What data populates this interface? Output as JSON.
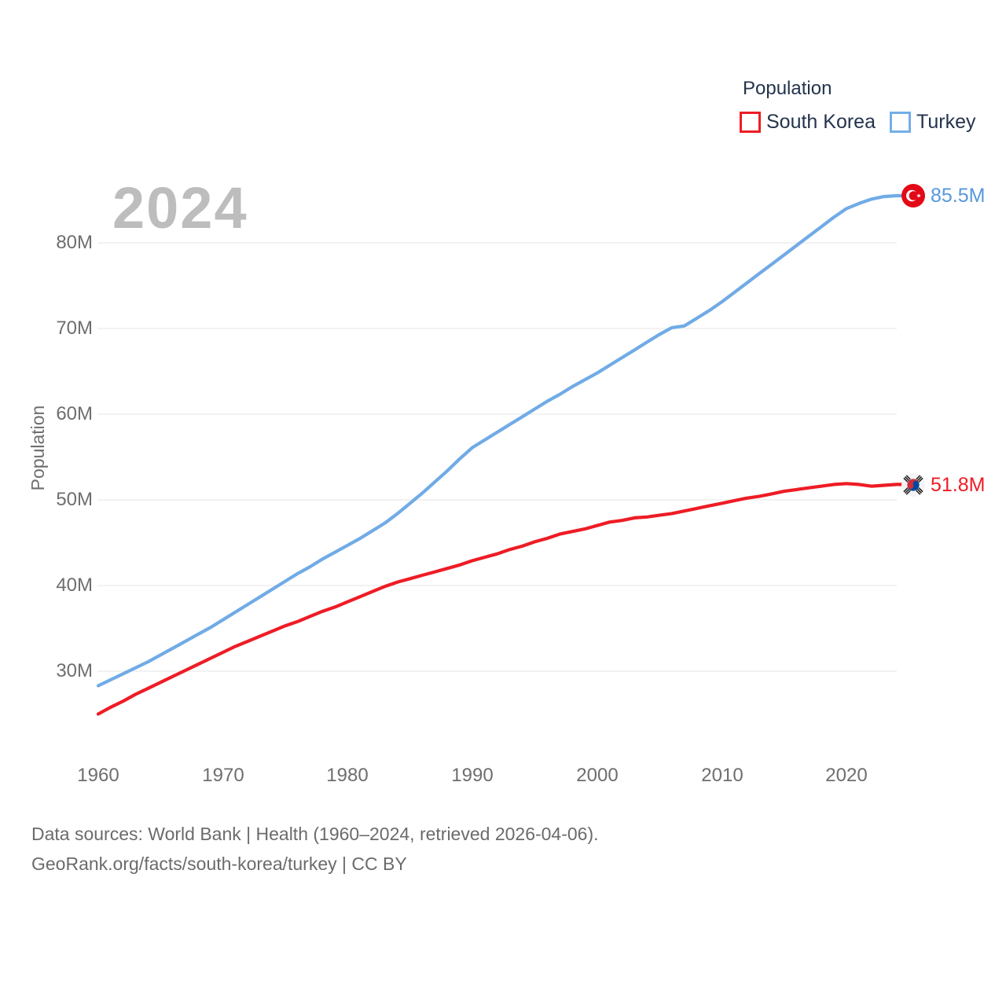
{
  "watermark": "2024",
  "legend": {
    "title": "Population",
    "series": [
      {
        "label": "South Korea",
        "color": "#ee1c25"
      },
      {
        "label": "Turkey",
        "color": "#74aee8"
      }
    ]
  },
  "y_axis": {
    "title": "Population",
    "tick_labels": [
      "80M",
      "70M",
      "60M",
      "50M",
      "40M",
      "30M"
    ]
  },
  "x_axis": {
    "tick_labels": [
      "1960",
      "1970",
      "1980",
      "1990",
      "2000",
      "2010",
      "2020"
    ]
  },
  "end_labels": {
    "turkey": {
      "text": "85.5M",
      "flag": "turkey-flag-icon"
    },
    "south_korea": {
      "text": "51.8M",
      "flag": "south-korea-flag-icon"
    }
  },
  "footer": {
    "line1": "Data sources: World Bank | Health (1960–2024, retrieved 2026-04-06).",
    "line2": "GeoRank.org/facts/south-korea/turkey | CC BY"
  },
  "chart_data": {
    "type": "line",
    "title": "Population of South Korea vs Turkey, 1960–2024",
    "xlabel": "",
    "ylabel": "Population",
    "ylim": [
      24,
      88
    ],
    "xlim": [
      1960,
      2024
    ],
    "grid": "horizontal",
    "legend_position": "top-right",
    "gridline_color": "#e9e9e9",
    "y_ticks": [
      30,
      40,
      50,
      60,
      70,
      80
    ],
    "y_tick_unit": "M",
    "x": [
      1960,
      1961,
      1962,
      1963,
      1964,
      1965,
      1966,
      1967,
      1968,
      1969,
      1970,
      1971,
      1972,
      1973,
      1974,
      1975,
      1976,
      1977,
      1978,
      1979,
      1980,
      1981,
      1982,
      1983,
      1984,
      1985,
      1986,
      1987,
      1988,
      1989,
      1990,
      1991,
      1992,
      1993,
      1994,
      1995,
      1996,
      1997,
      1998,
      1999,
      2000,
      2001,
      2002,
      2003,
      2004,
      2005,
      2006,
      2007,
      2008,
      2009,
      2010,
      2011,
      2012,
      2013,
      2014,
      2015,
      2016,
      2017,
      2018,
      2019,
      2020,
      2021,
      2022,
      2023,
      2024
    ],
    "series": [
      {
        "name": "South Korea",
        "color": "#ee1c25",
        "final_label": "51.8M",
        "values": [
          25.0,
          25.8,
          26.5,
          27.3,
          28.0,
          28.7,
          29.4,
          30.1,
          30.8,
          31.5,
          32.2,
          32.9,
          33.5,
          34.1,
          34.7,
          35.3,
          35.8,
          36.4,
          37.0,
          37.5,
          38.1,
          38.7,
          39.3,
          39.9,
          40.4,
          40.8,
          41.2,
          41.6,
          42.0,
          42.4,
          42.9,
          43.3,
          43.7,
          44.2,
          44.6,
          45.1,
          45.5,
          46.0,
          46.3,
          46.6,
          47.0,
          47.4,
          47.6,
          47.9,
          48.0,
          48.2,
          48.4,
          48.7,
          49.0,
          49.3,
          49.6,
          49.9,
          50.2,
          50.4,
          50.7,
          51.0,
          51.2,
          51.4,
          51.6,
          51.8,
          51.9,
          51.8,
          51.6,
          51.7,
          51.8
        ]
      },
      {
        "name": "Turkey",
        "color": "#70abe6",
        "final_label": "85.5M",
        "values": [
          28.3,
          29.0,
          29.7,
          30.4,
          31.1,
          31.9,
          32.7,
          33.5,
          34.3,
          35.1,
          36.0,
          36.9,
          37.8,
          38.7,
          39.6,
          40.5,
          41.4,
          42.2,
          43.1,
          43.9,
          44.7,
          45.5,
          46.4,
          47.3,
          48.4,
          49.6,
          50.8,
          52.1,
          53.4,
          54.8,
          56.1,
          57.0,
          57.9,
          58.8,
          59.7,
          60.6,
          61.5,
          62.3,
          63.2,
          64.0,
          64.8,
          65.7,
          66.6,
          67.5,
          68.4,
          69.3,
          70.1,
          70.3,
          71.2,
          72.1,
          73.1,
          74.2,
          75.3,
          76.4,
          77.5,
          78.6,
          79.7,
          80.8,
          81.9,
          83.0,
          84.0,
          84.6,
          85.1,
          85.4,
          85.5
        ]
      }
    ]
  }
}
